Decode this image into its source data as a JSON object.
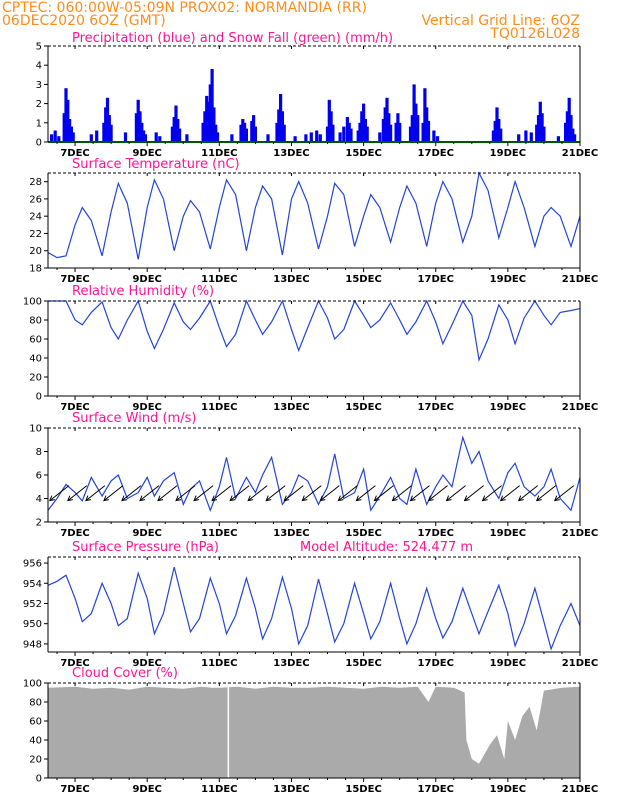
{
  "header": {
    "line1_left": "CPTEC:   060:00W-05:09N   PROX02: NORMANDIA (RR)",
    "line2_left": "06DEC2020 6OZ (GMT)",
    "line2_right": "Vertical Grid Line: 6OZ",
    "line3_right": "TQ0126L028"
  },
  "x_tick_labels": [
    "7DEC",
    "9DEC",
    "11DEC",
    "13DEC",
    "15DEC",
    "17DEC",
    "19DEC",
    "21DEC"
  ],
  "colors": {
    "header": "#ff8c1a",
    "title": "#ff1493",
    "precip": "#0000ee",
    "snow": "#00aa00",
    "line": "#2244dd",
    "cloud": "#aaaaaa",
    "arrow": "#000000"
  },
  "chart_data": [
    {
      "type": "bar",
      "title": "Precipitation (blue) and Snow Fall (green) (mm/h)",
      "ylim": [
        0,
        5
      ],
      "yticks": [
        0,
        1,
        2,
        3,
        4,
        5
      ],
      "x_range_days": [
        6.25,
        21
      ],
      "bars": [
        {
          "x": 6.35,
          "v": 0.4
        },
        {
          "x": 6.45,
          "v": 0.6
        },
        {
          "x": 6.55,
          "v": 0.3
        },
        {
          "x": 6.7,
          "v": 1.5
        },
        {
          "x": 6.75,
          "v": 2.8
        },
        {
          "x": 6.8,
          "v": 2.2
        },
        {
          "x": 6.85,
          "v": 1.2
        },
        {
          "x": 6.9,
          "v": 0.8
        },
        {
          "x": 6.95,
          "v": 0.5
        },
        {
          "x": 7.45,
          "v": 0.4
        },
        {
          "x": 7.6,
          "v": 0.6
        },
        {
          "x": 7.8,
          "v": 1.0
        },
        {
          "x": 7.85,
          "v": 1.8
        },
        {
          "x": 7.9,
          "v": 2.3
        },
        {
          "x": 7.95,
          "v": 1.4
        },
        {
          "x": 8.0,
          "v": 0.9
        },
        {
          "x": 8.4,
          "v": 0.5
        },
        {
          "x": 8.7,
          "v": 1.5
        },
        {
          "x": 8.75,
          "v": 2.2
        },
        {
          "x": 8.8,
          "v": 1.6
        },
        {
          "x": 8.85,
          "v": 1.0
        },
        {
          "x": 8.9,
          "v": 0.6
        },
        {
          "x": 8.95,
          "v": 0.4
        },
        {
          "x": 9.25,
          "v": 0.5
        },
        {
          "x": 9.35,
          "v": 0.3
        },
        {
          "x": 9.7,
          "v": 0.8
        },
        {
          "x": 9.75,
          "v": 1.3
        },
        {
          "x": 9.8,
          "v": 1.9
        },
        {
          "x": 9.85,
          "v": 1.2
        },
        {
          "x": 9.9,
          "v": 0.7
        },
        {
          "x": 10.1,
          "v": 0.4
        },
        {
          "x": 10.55,
          "v": 1.0
        },
        {
          "x": 10.6,
          "v": 1.6
        },
        {
          "x": 10.65,
          "v": 2.4
        },
        {
          "x": 10.7,
          "v": 2.1
        },
        {
          "x": 10.75,
          "v": 3.0
        },
        {
          "x": 10.8,
          "v": 3.8
        },
        {
          "x": 10.85,
          "v": 1.8
        },
        {
          "x": 10.9,
          "v": 0.9
        },
        {
          "x": 10.95,
          "v": 0.5
        },
        {
          "x": 11.35,
          "v": 0.4
        },
        {
          "x": 11.6,
          "v": 0.9
        },
        {
          "x": 11.65,
          "v": 1.2
        },
        {
          "x": 11.7,
          "v": 1.0
        },
        {
          "x": 11.75,
          "v": 0.7
        },
        {
          "x": 11.9,
          "v": 1.1
        },
        {
          "x": 11.95,
          "v": 1.4
        },
        {
          "x": 12.0,
          "v": 0.8
        },
        {
          "x": 12.35,
          "v": 0.4
        },
        {
          "x": 12.6,
          "v": 1.0
        },
        {
          "x": 12.65,
          "v": 1.7
        },
        {
          "x": 12.7,
          "v": 2.5
        },
        {
          "x": 12.75,
          "v": 1.6
        },
        {
          "x": 12.8,
          "v": 0.9
        },
        {
          "x": 13.1,
          "v": 0.3
        },
        {
          "x": 13.4,
          "v": 0.4
        },
        {
          "x": 13.55,
          "v": 0.5
        },
        {
          "x": 13.7,
          "v": 0.6
        },
        {
          "x": 13.8,
          "v": 0.4
        },
        {
          "x": 14.0,
          "v": 0.8
        },
        {
          "x": 14.05,
          "v": 2.2
        },
        {
          "x": 14.1,
          "v": 1.6
        },
        {
          "x": 14.15,
          "v": 0.9
        },
        {
          "x": 14.35,
          "v": 0.5
        },
        {
          "x": 14.45,
          "v": 0.8
        },
        {
          "x": 14.55,
          "v": 1.3
        },
        {
          "x": 14.6,
          "v": 1.0
        },
        {
          "x": 14.65,
          "v": 0.7
        },
        {
          "x": 14.85,
          "v": 0.6
        },
        {
          "x": 14.9,
          "v": 1.0
        },
        {
          "x": 14.95,
          "v": 1.6
        },
        {
          "x": 15.0,
          "v": 2.0
        },
        {
          "x": 15.05,
          "v": 1.2
        },
        {
          "x": 15.1,
          "v": 0.8
        },
        {
          "x": 15.45,
          "v": 0.5
        },
        {
          "x": 15.55,
          "v": 1.2
        },
        {
          "x": 15.6,
          "v": 1.8
        },
        {
          "x": 15.65,
          "v": 2.3
        },
        {
          "x": 15.7,
          "v": 1.5
        },
        {
          "x": 15.75,
          "v": 0.9
        },
        {
          "x": 15.9,
          "v": 1.0
        },
        {
          "x": 15.95,
          "v": 1.5
        },
        {
          "x": 16.0,
          "v": 1.0
        },
        {
          "x": 16.3,
          "v": 0.8
        },
        {
          "x": 16.35,
          "v": 1.4
        },
        {
          "x": 16.4,
          "v": 3.0
        },
        {
          "x": 16.45,
          "v": 2.0
        },
        {
          "x": 16.5,
          "v": 1.4
        },
        {
          "x": 16.65,
          "v": 1.0
        },
        {
          "x": 16.7,
          "v": 2.8
        },
        {
          "x": 16.75,
          "v": 1.8
        },
        {
          "x": 16.8,
          "v": 1.1
        },
        {
          "x": 16.95,
          "v": 0.6
        },
        {
          "x": 17.05,
          "v": 0.3
        },
        {
          "x": 18.6,
          "v": 0.6
        },
        {
          "x": 18.65,
          "v": 1.1
        },
        {
          "x": 18.7,
          "v": 1.8
        },
        {
          "x": 18.75,
          "v": 1.2
        },
        {
          "x": 18.8,
          "v": 0.7
        },
        {
          "x": 19.3,
          "v": 0.4
        },
        {
          "x": 19.5,
          "v": 0.6
        },
        {
          "x": 19.65,
          "v": 0.5
        },
        {
          "x": 19.8,
          "v": 0.9
        },
        {
          "x": 19.85,
          "v": 1.4
        },
        {
          "x": 19.9,
          "v": 2.1
        },
        {
          "x": 19.95,
          "v": 1.5
        },
        {
          "x": 20.0,
          "v": 0.8
        },
        {
          "x": 20.4,
          "v": 0.3
        },
        {
          "x": 20.6,
          "v": 1.0
        },
        {
          "x": 20.65,
          "v": 1.6
        },
        {
          "x": 20.7,
          "v": 2.3
        },
        {
          "x": 20.75,
          "v": 1.4
        },
        {
          "x": 20.8,
          "v": 0.7
        },
        {
          "x": 20.85,
          "v": 0.4
        }
      ],
      "snow": 0
    },
    {
      "type": "line",
      "title": "Surface Temperature (nC)",
      "ylim": [
        18,
        29
      ],
      "yticks": [
        18,
        20,
        22,
        24,
        26,
        28
      ],
      "x_range_days": [
        6.25,
        21
      ],
      "x": [
        6.25,
        6.5,
        6.75,
        7.0,
        7.2,
        7.45,
        7.75,
        8.0,
        8.2,
        8.45,
        8.75,
        9.0,
        9.2,
        9.45,
        9.75,
        10.0,
        10.2,
        10.45,
        10.75,
        11.0,
        11.2,
        11.45,
        11.75,
        12.0,
        12.2,
        12.45,
        12.75,
        13.0,
        13.2,
        13.45,
        13.75,
        14.0,
        14.2,
        14.45,
        14.75,
        15.0,
        15.2,
        15.45,
        15.75,
        16.0,
        16.2,
        16.45,
        16.75,
        17.0,
        17.2,
        17.45,
        17.75,
        18.0,
        18.2,
        18.45,
        18.75,
        19.0,
        19.2,
        19.45,
        19.75,
        20.0,
        20.2,
        20.45,
        20.75,
        21.0
      ],
      "y": [
        19.8,
        19.2,
        19.4,
        23.0,
        25.0,
        23.5,
        19.4,
        24.5,
        27.8,
        25.5,
        19.0,
        25.0,
        28.2,
        26.0,
        20.0,
        24.0,
        25.8,
        24.5,
        20.2,
        25.0,
        28.2,
        26.5,
        20.0,
        25.0,
        27.5,
        26.0,
        19.5,
        26.0,
        28.0,
        25.5,
        20.2,
        24.0,
        27.8,
        26.5,
        20.5,
        24.0,
        26.5,
        25.0,
        21.0,
        25.0,
        27.5,
        25.5,
        20.5,
        25.5,
        28.0,
        26.0,
        21.0,
        24.0,
        29.0,
        27.0,
        21.5,
        25.0,
        28.0,
        25.0,
        20.5,
        24.0,
        25.0,
        24.0,
        20.5,
        24.0
      ]
    },
    {
      "type": "line",
      "title": "Relative Humidity (%)",
      "ylim": [
        0,
        100
      ],
      "yticks": [
        0,
        20,
        40,
        60,
        80,
        100
      ],
      "x_range_days": [
        6.25,
        21
      ],
      "x": [
        6.25,
        6.5,
        6.75,
        7.0,
        7.2,
        7.45,
        7.75,
        8.0,
        8.2,
        8.45,
        8.75,
        9.0,
        9.2,
        9.45,
        9.75,
        10.0,
        10.2,
        10.45,
        10.75,
        11.0,
        11.2,
        11.45,
        11.75,
        12.0,
        12.2,
        12.45,
        12.75,
        13.0,
        13.2,
        13.45,
        13.75,
        14.0,
        14.2,
        14.45,
        14.75,
        15.0,
        15.2,
        15.45,
        15.75,
        16.0,
        16.2,
        16.45,
        16.75,
        17.0,
        17.2,
        17.45,
        17.75,
        18.0,
        18.2,
        18.45,
        18.75,
        19.0,
        19.2,
        19.45,
        19.75,
        20.0,
        20.2,
        20.45,
        20.75,
        21.0
      ],
      "y": [
        100,
        100,
        100,
        80,
        75,
        88,
        99,
        72,
        60,
        80,
        100,
        68,
        50,
        70,
        98,
        78,
        70,
        82,
        100,
        72,
        52,
        65,
        100,
        80,
        65,
        78,
        100,
        70,
        48,
        72,
        100,
        82,
        60,
        70,
        100,
        85,
        72,
        80,
        98,
        80,
        65,
        78,
        100,
        78,
        55,
        75,
        100,
        85,
        38,
        60,
        96,
        80,
        55,
        82,
        100,
        85,
        75,
        88,
        90,
        92
      ]
    },
    {
      "type": "line",
      "title": "Surface Wind (m/s)",
      "ylim": [
        2,
        10
      ],
      "yticks": [
        2,
        4,
        6,
        8,
        10
      ],
      "x_range_days": [
        6.25,
        21
      ],
      "x": [
        6.25,
        6.5,
        6.75,
        7.0,
        7.2,
        7.45,
        7.75,
        8.0,
        8.2,
        8.45,
        8.75,
        9.0,
        9.2,
        9.45,
        9.75,
        10.0,
        10.2,
        10.45,
        10.75,
        11.0,
        11.2,
        11.45,
        11.75,
        12.0,
        12.2,
        12.45,
        12.75,
        13.0,
        13.2,
        13.45,
        13.75,
        14.0,
        14.2,
        14.45,
        14.75,
        15.0,
        15.2,
        15.45,
        15.75,
        16.0,
        16.2,
        16.45,
        16.75,
        17.0,
        17.2,
        17.45,
        17.75,
        18.0,
        18.2,
        18.45,
        18.75,
        19.0,
        19.2,
        19.45,
        19.75,
        20.0,
        20.2,
        20.45,
        20.75,
        21.0
      ],
      "y": [
        3.0,
        4.0,
        5.2,
        4.5,
        3.8,
        5.8,
        4.2,
        5.5,
        6.0,
        4.0,
        4.5,
        5.8,
        4.2,
        5.5,
        6.2,
        3.5,
        4.8,
        5.5,
        3.0,
        5.0,
        7.5,
        4.0,
        5.8,
        4.5,
        6.0,
        7.5,
        3.5,
        4.5,
        6.0,
        5.5,
        3.5,
        5.0,
        7.8,
        4.0,
        4.5,
        6.5,
        3.0,
        4.2,
        5.8,
        4.0,
        3.5,
        6.5,
        3.5,
        5.0,
        6.0,
        5.0,
        9.2,
        7.0,
        8.0,
        5.5,
        4.0,
        6.2,
        7.0,
        5.0,
        4.2,
        5.0,
        6.5,
        4.0,
        3.0,
        5.8
      ],
      "arrows": [
        6.55,
        7.05,
        7.55,
        8.05,
        8.55,
        9.05,
        9.55,
        10.05,
        10.55,
        11.05,
        11.55,
        12.05,
        12.55,
        13.05,
        13.55,
        14.05,
        14.55,
        15.05,
        15.55,
        16.05,
        16.55,
        17.05,
        17.55,
        18.05,
        18.55,
        19.05,
        19.55,
        20.05,
        20.55
      ]
    },
    {
      "type": "line",
      "title": "Surface Pressure (hPa)",
      "subtitle": "Model Altitude: 524.477 m",
      "ylim": [
        947.2,
        956.6
      ],
      "yticks": [
        948,
        950,
        952,
        954,
        956
      ],
      "x_range_days": [
        6.25,
        21
      ],
      "x": [
        6.25,
        6.5,
        6.75,
        7.0,
        7.2,
        7.45,
        7.75,
        8.0,
        8.2,
        8.45,
        8.75,
        9.0,
        9.2,
        9.45,
        9.75,
        10.0,
        10.2,
        10.45,
        10.75,
        11.0,
        11.2,
        11.45,
        11.75,
        12.0,
        12.2,
        12.45,
        12.75,
        13.0,
        13.2,
        13.45,
        13.75,
        14.0,
        14.2,
        14.45,
        14.75,
        15.0,
        15.2,
        15.45,
        15.75,
        16.0,
        16.2,
        16.45,
        16.75,
        17.0,
        17.2,
        17.45,
        17.75,
        18.0,
        18.2,
        18.45,
        18.75,
        19.0,
        19.2,
        19.45,
        19.75,
        20.0,
        20.2,
        20.45,
        20.75,
        21.0
      ],
      "y": [
        953.8,
        954.2,
        954.8,
        952.5,
        950.2,
        951.0,
        954.0,
        952.0,
        949.8,
        950.5,
        955.0,
        952.5,
        949.0,
        951.0,
        955.6,
        952.0,
        949.2,
        950.5,
        954.5,
        952.0,
        949.0,
        950.8,
        954.5,
        951.5,
        948.5,
        950.5,
        954.6,
        951.5,
        948.0,
        949.8,
        954.4,
        951.0,
        948.2,
        950.0,
        954.0,
        951.0,
        948.5,
        950.2,
        954.0,
        950.5,
        948.0,
        950.0,
        953.5,
        950.5,
        948.6,
        950.2,
        953.5,
        951.0,
        949.0,
        951.2,
        953.8,
        951.0,
        947.8,
        950.0,
        953.5,
        950.2,
        947.5,
        949.8,
        952.0,
        949.8
      ]
    },
    {
      "type": "area",
      "title": "Cloud Cover (%)",
      "ylim": [
        0,
        100
      ],
      "yticks": [
        0,
        20,
        40,
        60,
        80,
        100
      ],
      "x_range_days": [
        6.25,
        21
      ],
      "x": [
        6.25,
        7.0,
        7.5,
        8.0,
        8.5,
        9.0,
        9.5,
        10.0,
        10.5,
        10.8,
        10.9,
        11.0,
        11.5,
        12.0,
        12.5,
        13.0,
        13.5,
        14.0,
        14.5,
        15.0,
        15.5,
        16.0,
        16.5,
        16.8,
        17.0,
        17.5,
        17.8,
        17.85,
        18.0,
        18.2,
        18.5,
        18.7,
        18.9,
        19.0,
        19.2,
        19.4,
        19.6,
        19.8,
        20.0,
        20.5,
        21.0
      ],
      "y": [
        95,
        96,
        94,
        95,
        93,
        96,
        95,
        94,
        96,
        95,
        95,
        95,
        96,
        94,
        96,
        95,
        95,
        96,
        95,
        94,
        96,
        95,
        96,
        80,
        96,
        95,
        90,
        40,
        20,
        15,
        35,
        45,
        20,
        60,
        40,
        65,
        75,
        50,
        92,
        95,
        96
      ],
      "gaps": [
        11.25
      ]
    }
  ]
}
